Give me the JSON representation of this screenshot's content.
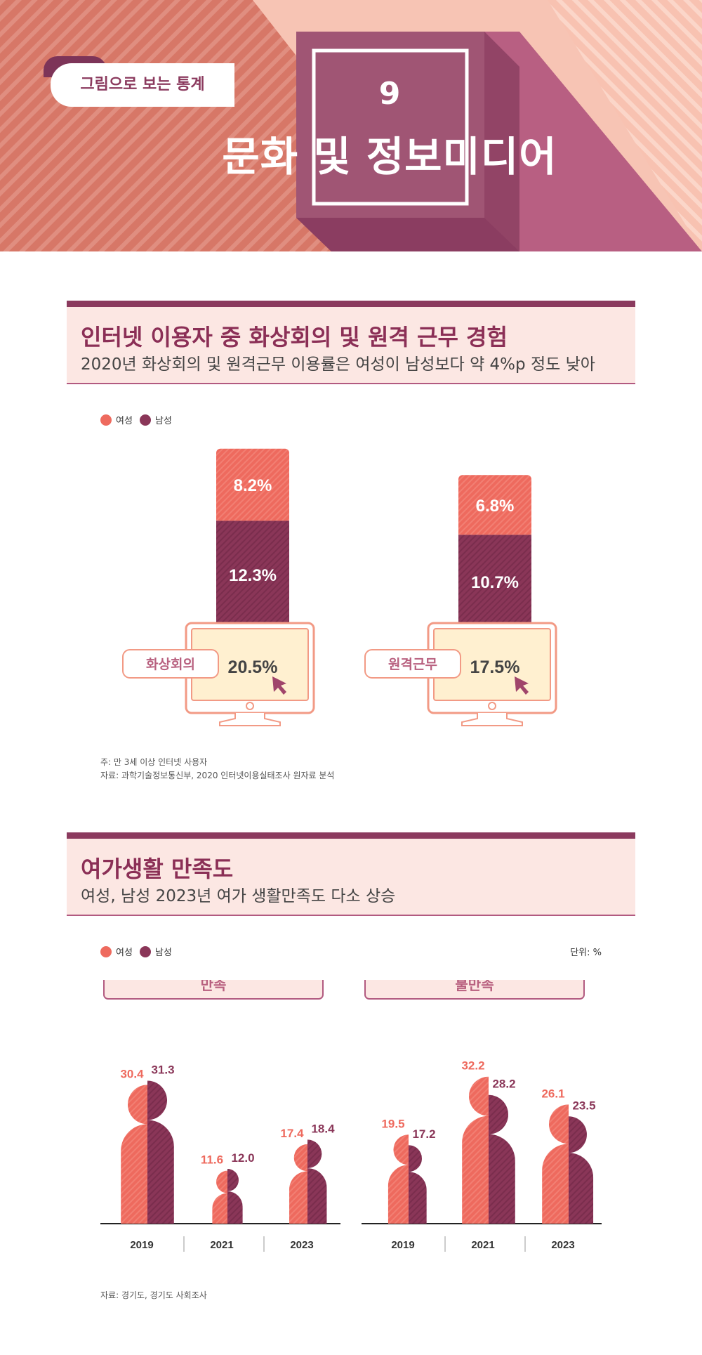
{
  "header": {
    "badge": "그림으로 보는 통계",
    "number": "9",
    "title": "문화 및 정보미디어"
  },
  "colors": {
    "female": "#ee6a5e",
    "male": "#8a3658",
    "accent": "#8b2f56",
    "pink": "#b8607f"
  },
  "legend": {
    "female": "여성",
    "male": "남성"
  },
  "section1": {
    "title": "인터넷 이용자 중 화상회의 및 원격 근무 경험",
    "subtitle": "2020년 화상회의 및 원격근무 이용률은 여성이 남성보다 약 4%p 정도 낮아",
    "note1": "주: 만 3세 이상 인터넷 사용자",
    "note2": "자료: 과학기술정보통신부, 2020 인터넷이용실태조사 원자료 분석"
  },
  "section2": {
    "title": "여가생활 만족도",
    "subtitle": "여성, 남성 2023년 여가 생활만족도 다소 상승",
    "unit": "단위: %",
    "source": "자료: 경기도, 경기도 사회조사"
  },
  "chart_data": [
    {
      "type": "bar",
      "stacked": true,
      "categories": [
        "화상회의",
        "원격근무"
      ],
      "series": [
        {
          "name": "여성",
          "values": [
            8.2,
            6.8
          ],
          "labels": [
            "8.2%",
            "6.8%"
          ]
        },
        {
          "name": "남성",
          "values": [
            12.3,
            10.7
          ],
          "labels": [
            "12.3%",
            "10.7%"
          ]
        }
      ],
      "totals": [
        20.5,
        17.5
      ],
      "total_labels": [
        "20.5%",
        "17.5%"
      ],
      "legend_placement": "top-left"
    },
    {
      "type": "bar",
      "groups": [
        {
          "name": "만족",
          "categories": [
            "2019",
            "2021",
            "2023"
          ],
          "series": [
            {
              "name": "여성",
              "values": [
                30.4,
                11.6,
                17.4
              ],
              "labels": [
                "30.4",
                "11.6",
                "17.4"
              ]
            },
            {
              "name": "남성",
              "values": [
                31.3,
                12.0,
                18.4
              ],
              "labels": [
                "31.3",
                "12.0",
                "18.4"
              ]
            }
          ]
        },
        {
          "name": "불만족",
          "categories": [
            "2019",
            "2021",
            "2023"
          ],
          "series": [
            {
              "name": "여성",
              "values": [
                19.5,
                32.2,
                26.1
              ],
              "labels": [
                "19.5",
                "32.2",
                "26.1"
              ]
            },
            {
              "name": "남성",
              "values": [
                17.2,
                28.2,
                23.5
              ],
              "labels": [
                "17.2",
                "28.2",
                "23.5"
              ]
            }
          ]
        }
      ],
      "legend_placement": "top-left"
    }
  ]
}
